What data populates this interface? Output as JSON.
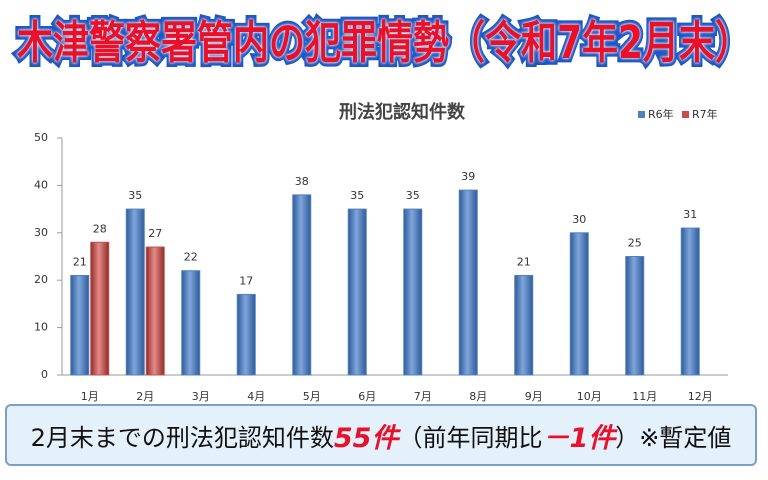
{
  "header": {
    "title": "木津警察署管内の犯罪情勢（令和7年2月末）"
  },
  "chart_data": {
    "type": "bar",
    "title": "刑法犯認知件数",
    "categories": [
      "1月",
      "2月",
      "3月",
      "4月",
      "5月",
      "6月",
      "7月",
      "8月",
      "9月",
      "10月",
      "11月",
      "12月"
    ],
    "series": [
      {
        "name": "R6年",
        "color": "#4f81bd",
        "values": [
          21,
          35,
          22,
          17,
          38,
          35,
          35,
          39,
          21,
          30,
          25,
          31
        ]
      },
      {
        "name": "R7年",
        "color": "#c0504d",
        "values": [
          28,
          27,
          null,
          null,
          null,
          null,
          null,
          null,
          null,
          null,
          null,
          null
        ]
      }
    ],
    "ylim": [
      0,
      50
    ],
    "yticks": [
      0,
      10,
      20,
      30,
      40,
      50
    ],
    "grid": false,
    "legend": "top-right"
  },
  "footer": {
    "lead": "2月末までの刑法犯認知件数",
    "count": "55件",
    "middle": "（前年同期比",
    "change": "－1件",
    "tail": "）※暫定値"
  }
}
